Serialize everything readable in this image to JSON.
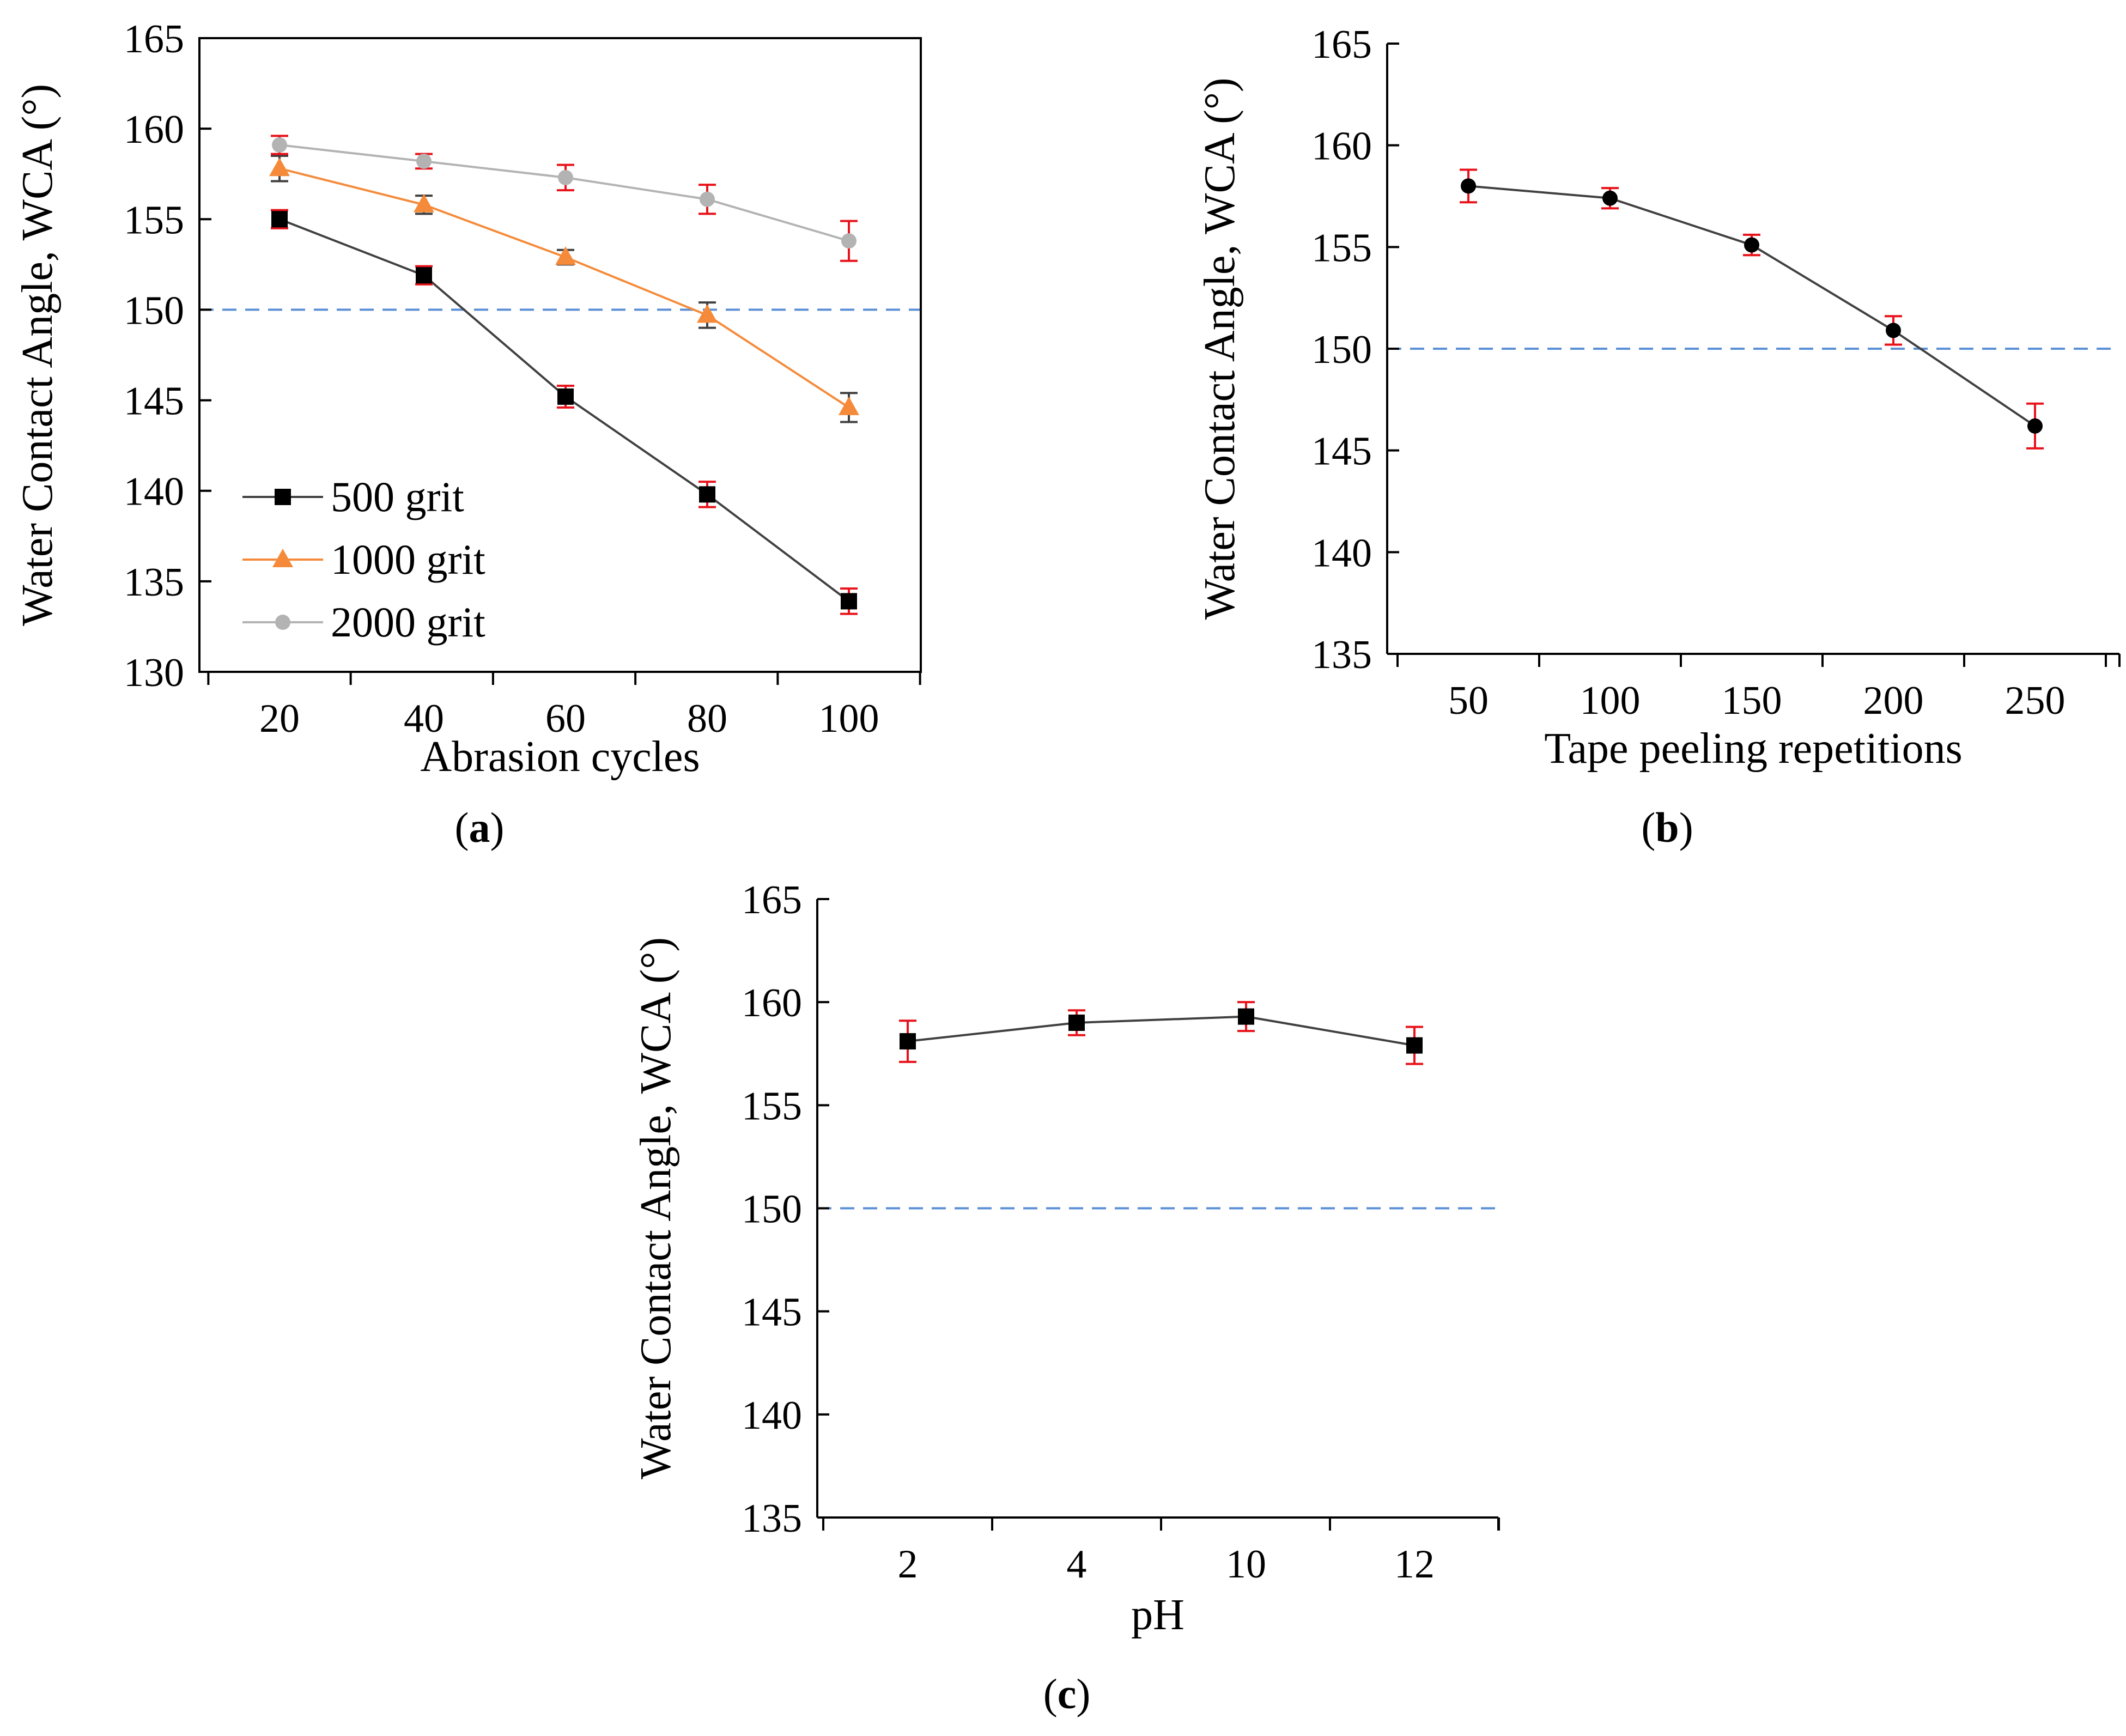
{
  "chart_data": [
    {
      "type": "line",
      "panel_label": "a",
      "xlabel": "Abrasion cycles",
      "ylabel": "Water Contact Angle,  WCA (°)",
      "x": [
        20,
        40,
        60,
        80,
        100
      ],
      "x_tick_labels": [
        "20",
        "40",
        "60",
        "80",
        "100"
      ],
      "ylim": [
        130,
        165
      ],
      "y_ticks": [
        130,
        135,
        140,
        145,
        150,
        155,
        160,
        165
      ],
      "y_tick_labels": [
        "130",
        "135",
        "140",
        "145",
        "150",
        "155",
        "160",
        "165"
      ],
      "reference_line": {
        "y": 150,
        "color": "#5b8fd6",
        "style": "dashed"
      },
      "legend_position": "bottom-left",
      "grid": false,
      "series": [
        {
          "name": "500 grit",
          "marker": "square",
          "color": "#404040",
          "values": [
            155.0,
            151.9,
            145.2,
            139.8,
            133.9
          ],
          "error": [
            0.5,
            0.5,
            0.6,
            0.7,
            0.7
          ],
          "error_colors": [
            "#e8121a",
            "#e8121a",
            "#e8121a",
            "#e8121a",
            "#e8121a"
          ]
        },
        {
          "name": "1000 grit",
          "marker": "triangle",
          "color": "#f58b3a",
          "values": [
            157.8,
            155.8,
            152.9,
            149.7,
            144.6
          ],
          "error": [
            0.7,
            0.5,
            0.4,
            0.7,
            0.8
          ],
          "error_colors": [
            "#404040",
            "#404040",
            "#404040",
            "#404040",
            "#404040"
          ]
        },
        {
          "name": "2000 grit",
          "marker": "circle",
          "color": "#b3b3b3",
          "values": [
            159.1,
            158.2,
            157.3,
            156.1,
            153.8
          ],
          "error": [
            0.5,
            0.4,
            0.7,
            0.8,
            1.1
          ],
          "error_colors": [
            "#e8121a",
            "#e8121a",
            "#e8121a",
            "#e8121a",
            "#e8121a"
          ]
        }
      ]
    },
    {
      "type": "line",
      "panel_label": "b",
      "xlabel": "Tape peeling repetitions",
      "ylabel": "Water Contact Angle,  WCA (°)",
      "x": [
        50,
        100,
        150,
        200,
        250
      ],
      "x_tick_labels": [
        "50",
        "100",
        "150",
        "200",
        "250"
      ],
      "ylim": [
        135,
        165
      ],
      "y_ticks": [
        135,
        140,
        145,
        150,
        155,
        160,
        165
      ],
      "y_tick_labels": [
        "135",
        "140",
        "145",
        "150",
        "155",
        "160",
        "165"
      ],
      "reference_line": {
        "y": 150,
        "color": "#5b8fd6",
        "style": "dashed"
      },
      "grid": false,
      "series": [
        {
          "name": "",
          "marker": "circle",
          "color": "#404040",
          "values": [
            158.0,
            157.4,
            155.1,
            150.9,
            146.2
          ],
          "error": [
            0.8,
            0.5,
            0.5,
            0.7,
            1.1
          ],
          "error_colors": [
            "#e8121a",
            "#e8121a",
            "#e8121a",
            "#e8121a",
            "#e8121a"
          ]
        }
      ]
    },
    {
      "type": "line",
      "panel_label": "c",
      "xlabel": "pH",
      "ylabel": "Water Contact Angle,  WCA (°)",
      "x": [
        "2",
        "4",
        "10",
        "12"
      ],
      "x_tick_labels": [
        "2",
        "4",
        "10",
        "12"
      ],
      "ylim": [
        135,
        165
      ],
      "y_ticks": [
        135,
        140,
        145,
        150,
        155,
        160,
        165
      ],
      "y_tick_labels": [
        "135",
        "140",
        "145",
        "150",
        "155",
        "160",
        "165"
      ],
      "reference_line": {
        "y": 150,
        "color": "#5b8fd6",
        "style": "dashed"
      },
      "grid": false,
      "series": [
        {
          "name": "",
          "marker": "square",
          "color": "#404040",
          "values": [
            158.1,
            159.0,
            159.3,
            157.9
          ],
          "error": [
            1.0,
            0.6,
            0.7,
            0.9
          ],
          "error_colors": [
            "#e8121a",
            "#e8121a",
            "#e8121a",
            "#e8121a"
          ]
        }
      ]
    }
  ],
  "panel_labels": [
    "(a)",
    "(b)",
    "(c)"
  ]
}
